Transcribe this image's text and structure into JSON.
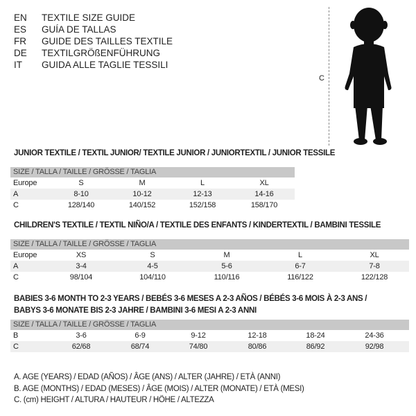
{
  "languages": [
    {
      "code": "EN",
      "text": "TEXTILE SIZE GUIDE"
    },
    {
      "code": "ES",
      "text": "GUÍA DE TALLAS"
    },
    {
      "code": "FR",
      "text": "GUIDE DES TAILLES TEXTILE"
    },
    {
      "code": "DE",
      "text": "TEXTILGRÖßENFÜHRUNG"
    },
    {
      "code": "IT",
      "text": "GUIDA ALLE TAGLIE TESSILI"
    }
  ],
  "figure": {
    "measure_label": "C",
    "icon": "child-silhouette"
  },
  "tables": [
    {
      "title": "JUNIOR TEXTILE / TEXTIL JUNIOR/ TEXTILE JUNIOR / JUNIORTEXTIL / JUNIOR TESSILE",
      "header": "SIZE / TALLA / TAILLE / GRÖSSE / TAGLIA",
      "rows": [
        {
          "label": "Europe",
          "values": [
            "S",
            "M",
            "L",
            "XL"
          ]
        },
        {
          "label": "A",
          "values": [
            "8-10",
            "10-12",
            "12-13",
            "14-16"
          ]
        },
        {
          "label": "C",
          "values": [
            "128/140",
            "140/152",
            "152/158",
            "158/170"
          ]
        }
      ]
    },
    {
      "title": "CHILDREN'S TEXTILE / TEXTIL NIÑO/A / TEXTILE DES ENFANTS / KINDERTEXTIL / BAMBINI TESSILE",
      "header": "SIZE / TALLA / TAILLE / GRÖSSE / TAGLIA",
      "rows": [
        {
          "label": "Europe",
          "values": [
            "XS",
            "S",
            "M",
            "L",
            "XL"
          ]
        },
        {
          "label": "A",
          "values": [
            "3-4",
            "4-5",
            "5-6",
            "6-7",
            "7-8"
          ]
        },
        {
          "label": "C",
          "values": [
            "98/104",
            "104/110",
            "110/116",
            "116/122",
            "122/128"
          ]
        }
      ]
    },
    {
      "title": "BABIES 3-6 MONTH TO 2-3 YEARS / BEBÉS 3-6 MESES A 2-3 AÑOS / BÉBÉS 3-6 MOIS À 2-3 ANS /",
      "title2": "BABYS 3-6 MONATE BIS 2-3 JAHRE / BAMBINI 3-6 MESI A 2-3 ANNI",
      "header": "SIZE / TALLA / TAILLE / GRÖSSE / TAGLIA",
      "rows": [
        {
          "label": "B",
          "values": [
            "3-6",
            "6-9",
            "9-12",
            "12-18",
            "18-24",
            "24-36"
          ]
        },
        {
          "label": "C",
          "values": [
            "62/68",
            "68/74",
            "74/80",
            "80/86",
            "86/92",
            "92/98"
          ]
        }
      ]
    }
  ],
  "footnotes": [
    "A. AGE (YEARS) / EDAD (AÑOS) / ÂGE (ANS) / ALTER (JAHRE) / ETÀ (ANNI)",
    "B. AGE (MONTHS) / EDAD (MESES) / ÂGE (MOIS) / ALTER (MONATE) / ETÀ (MESI)",
    "C. (cm) HEIGHT / ALTURA / HAUTEUR / HÖHE / ALTEZZA"
  ]
}
